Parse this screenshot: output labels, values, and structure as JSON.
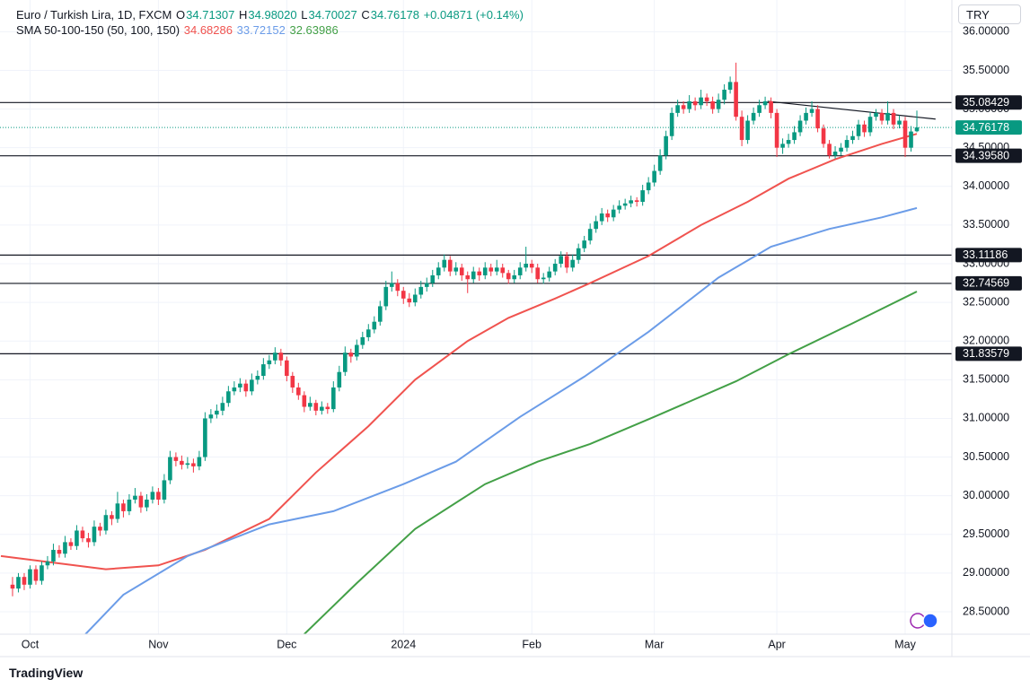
{
  "legend": {
    "symbol": "Euro / Turkish Lira, 1D, FXCM",
    "o_label": "O",
    "open": "34.71307",
    "h_label": "H",
    "high": "34.98020",
    "l_label": "L",
    "low": "34.70027",
    "c_label": "C",
    "close": "34.76178",
    "change": "+0.04871 (+0.14%)",
    "sma_title": "SMA 50-100-150 (50, 100, 150)",
    "sma_values": [
      "34.68286",
      "33.72152",
      "32.63986"
    ]
  },
  "currency": "TRY",
  "brand": "TradingView",
  "chart_data": {
    "type": "candlestick",
    "up_color": "#089981",
    "down_color": "#f23645",
    "grid": true,
    "xlim": [
      -2.15,
      161
    ],
    "ylim": [
      28.21,
      36.41
    ],
    "xticks": [
      {
        "value": 3,
        "label": "Oct"
      },
      {
        "value": 25,
        "label": "Nov"
      },
      {
        "value": 47,
        "label": "Dec"
      },
      {
        "value": 67,
        "label": "2024"
      },
      {
        "value": 89,
        "label": "Feb"
      },
      {
        "value": 110,
        "label": "Mar"
      },
      {
        "value": 131,
        "label": "Apr"
      },
      {
        "value": 153,
        "label": "May"
      }
    ],
    "yticks": [
      {
        "value": 36,
        "label": "36.00000"
      },
      {
        "value": 35.5,
        "label": "35.50000"
      },
      {
        "value": 35,
        "label": "35.00000"
      },
      {
        "value": 34.5,
        "label": "34.50000"
      },
      {
        "value": 34,
        "label": "34.00000"
      },
      {
        "value": 33.5,
        "label": "33.50000"
      },
      {
        "value": 33,
        "label": "33.00000"
      },
      {
        "value": 32.5,
        "label": "32.50000"
      },
      {
        "value": 32,
        "label": "32.00000"
      },
      {
        "value": 31.5,
        "label": "31.50000"
      },
      {
        "value": 31,
        "label": "31.00000"
      },
      {
        "value": 30.5,
        "label": "30.50000"
      },
      {
        "value": 30,
        "label": "30.00000"
      },
      {
        "value": 29.5,
        "label": "29.50000"
      },
      {
        "value": 29,
        "label": "29.00000"
      },
      {
        "value": 28.5,
        "label": "28.50000"
      }
    ],
    "candles": [
      [
        28.85,
        28.95,
        28.7,
        28.8
      ],
      [
        28.8,
        29.0,
        28.75,
        28.95
      ],
      [
        28.95,
        29.0,
        28.78,
        28.85
      ],
      [
        28.85,
        29.1,
        28.8,
        29.05
      ],
      [
        29.05,
        29.1,
        28.85,
        28.9
      ],
      [
        28.9,
        29.15,
        28.85,
        29.1
      ],
      [
        29.1,
        29.22,
        29.05,
        29.15
      ],
      [
        29.15,
        29.38,
        29.1,
        29.3
      ],
      [
        29.3,
        29.36,
        29.2,
        29.25
      ],
      [
        29.25,
        29.48,
        29.2,
        29.4
      ],
      [
        29.4,
        29.45,
        29.3,
        29.35
      ],
      [
        29.35,
        29.62,
        29.3,
        29.55
      ],
      [
        29.55,
        29.6,
        29.4,
        29.45
      ],
      [
        29.45,
        29.52,
        29.33,
        29.4
      ],
      [
        29.4,
        29.68,
        29.35,
        29.6
      ],
      [
        29.6,
        29.65,
        29.48,
        29.55
      ],
      [
        29.55,
        29.82,
        29.5,
        29.75
      ],
      [
        29.75,
        29.8,
        29.62,
        29.7
      ],
      [
        29.7,
        30.05,
        29.65,
        29.9
      ],
      [
        29.9,
        29.95,
        29.72,
        29.8
      ],
      [
        29.8,
        30.02,
        29.75,
        29.95
      ],
      [
        29.95,
        30.1,
        29.9,
        30.0
      ],
      [
        30.0,
        30.05,
        29.78,
        29.85
      ],
      [
        29.85,
        30.02,
        29.8,
        29.95
      ],
      [
        29.95,
        30.12,
        29.9,
        30.05
      ],
      [
        30.05,
        30.1,
        29.88,
        29.95
      ],
      [
        29.95,
        30.28,
        29.9,
        30.2
      ],
      [
        30.2,
        30.58,
        30.15,
        30.5
      ],
      [
        30.5,
        30.56,
        30.38,
        30.45
      ],
      [
        30.45,
        30.52,
        30.34,
        30.4
      ],
      [
        30.4,
        30.5,
        30.35,
        30.42
      ],
      [
        30.42,
        30.48,
        30.3,
        30.38
      ],
      [
        30.38,
        30.58,
        30.33,
        30.5
      ],
      [
        30.5,
        31.08,
        30.45,
        31.0
      ],
      [
        31.0,
        31.12,
        30.94,
        31.05
      ],
      [
        31.05,
        31.18,
        31.0,
        31.1
      ],
      [
        31.1,
        31.28,
        31.04,
        31.2
      ],
      [
        31.2,
        31.42,
        31.15,
        31.35
      ],
      [
        31.35,
        31.48,
        31.3,
        31.4
      ],
      [
        31.4,
        31.52,
        31.34,
        31.45
      ],
      [
        31.45,
        31.5,
        31.28,
        31.35
      ],
      [
        31.35,
        31.58,
        31.3,
        31.5
      ],
      [
        31.5,
        31.62,
        31.44,
        31.55
      ],
      [
        31.55,
        31.78,
        31.5,
        31.7
      ],
      [
        31.7,
        31.82,
        31.64,
        31.75
      ],
      [
        31.75,
        31.92,
        31.7,
        31.85
      ],
      [
        31.85,
        31.9,
        31.68,
        31.75
      ],
      [
        31.75,
        31.8,
        31.48,
        31.55
      ],
      [
        31.55,
        31.6,
        31.33,
        31.4
      ],
      [
        31.4,
        31.46,
        31.24,
        31.3
      ],
      [
        31.3,
        31.35,
        31.08,
        31.15
      ],
      [
        31.15,
        31.28,
        31.1,
        31.2
      ],
      [
        31.2,
        31.24,
        31.04,
        31.1
      ],
      [
        31.1,
        31.22,
        31.05,
        31.15
      ],
      [
        31.15,
        31.2,
        31.06,
        31.12
      ],
      [
        31.12,
        31.48,
        31.08,
        31.4
      ],
      [
        31.4,
        31.68,
        31.35,
        31.6
      ],
      [
        31.6,
        31.93,
        31.55,
        31.85
      ],
      [
        31.85,
        31.9,
        31.72,
        31.8
      ],
      [
        31.8,
        32.02,
        31.75,
        31.95
      ],
      [
        31.95,
        32.12,
        31.9,
        32.05
      ],
      [
        32.05,
        32.22,
        32.0,
        32.15
      ],
      [
        32.15,
        32.32,
        32.1,
        32.25
      ],
      [
        32.25,
        32.52,
        32.2,
        32.45
      ],
      [
        32.45,
        32.78,
        32.4,
        32.7
      ],
      [
        32.7,
        32.9,
        32.64,
        32.75
      ],
      [
        32.75,
        32.8,
        32.58,
        32.65
      ],
      [
        32.65,
        32.7,
        32.48,
        32.55
      ],
      [
        32.55,
        32.62,
        32.44,
        32.5
      ],
      [
        32.5,
        32.68,
        32.45,
        32.6
      ],
      [
        32.6,
        32.78,
        32.55,
        32.7
      ],
      [
        32.7,
        32.82,
        32.64,
        32.75
      ],
      [
        32.75,
        32.92,
        32.7,
        32.85
      ],
      [
        32.85,
        33.02,
        32.8,
        32.95
      ],
      [
        32.95,
        33.12,
        32.9,
        33.05
      ],
      [
        33.05,
        33.1,
        32.84,
        32.9
      ],
      [
        32.9,
        33.02,
        32.85,
        32.95
      ],
      [
        32.95,
        33.0,
        32.78,
        32.85
      ],
      [
        32.85,
        32.9,
        32.62,
        32.8
      ],
      [
        32.8,
        32.96,
        32.75,
        32.9
      ],
      [
        32.9,
        32.95,
        32.78,
        32.85
      ],
      [
        32.85,
        33.02,
        32.8,
        32.95
      ],
      [
        32.95,
        33.0,
        32.84,
        32.9
      ],
      [
        32.9,
        33.05,
        32.85,
        32.95
      ],
      [
        32.95,
        33.0,
        32.82,
        32.88
      ],
      [
        32.88,
        32.92,
        32.74,
        32.8
      ],
      [
        32.8,
        32.92,
        32.75,
        32.85
      ],
      [
        32.85,
        33.02,
        32.8,
        32.95
      ],
      [
        32.95,
        33.22,
        32.9,
        33.0
      ],
      [
        33.0,
        33.05,
        32.88,
        32.95
      ],
      [
        32.95,
        33.0,
        32.75,
        32.8
      ],
      [
        32.8,
        32.88,
        32.74,
        32.82
      ],
      [
        32.82,
        32.96,
        32.77,
        32.9
      ],
      [
        32.9,
        33.06,
        32.85,
        33.0
      ],
      [
        33.0,
        33.16,
        32.95,
        33.1
      ],
      [
        33.1,
        33.15,
        32.88,
        32.95
      ],
      [
        32.95,
        33.12,
        32.9,
        33.05
      ],
      [
        33.05,
        33.26,
        33.0,
        33.2
      ],
      [
        33.2,
        33.36,
        33.15,
        33.3
      ],
      [
        33.3,
        33.52,
        33.25,
        33.45
      ],
      [
        33.45,
        33.62,
        33.4,
        33.55
      ],
      [
        33.55,
        33.72,
        33.5,
        33.65
      ],
      [
        33.65,
        33.7,
        33.54,
        33.6
      ],
      [
        33.6,
        33.76,
        33.55,
        33.7
      ],
      [
        33.7,
        33.82,
        33.65,
        33.75
      ],
      [
        33.75,
        33.84,
        33.7,
        33.78
      ],
      [
        33.78,
        33.88,
        33.73,
        33.82
      ],
      [
        33.82,
        33.86,
        33.74,
        33.8
      ],
      [
        33.8,
        34.02,
        33.75,
        33.95
      ],
      [
        33.95,
        34.12,
        33.9,
        34.05
      ],
      [
        34.05,
        34.28,
        34.0,
        34.2
      ],
      [
        34.2,
        34.48,
        34.15,
        34.4
      ],
      [
        34.4,
        34.72,
        34.35,
        34.65
      ],
      [
        34.65,
        35.02,
        34.6,
        34.95
      ],
      [
        34.95,
        35.12,
        34.9,
        35.05
      ],
      [
        35.05,
        35.1,
        34.94,
        35.0
      ],
      [
        35.0,
        35.18,
        34.95,
        35.1
      ],
      [
        35.1,
        35.15,
        34.98,
        35.05
      ],
      [
        35.05,
        35.25,
        35.0,
        35.15
      ],
      [
        35.15,
        35.2,
        35.04,
        35.1
      ],
      [
        35.1,
        35.16,
        34.94,
        35.0
      ],
      [
        35.0,
        35.2,
        34.95,
        35.12
      ],
      [
        35.12,
        35.32,
        35.06,
        35.25
      ],
      [
        35.25,
        35.42,
        35.2,
        35.35
      ],
      [
        35.35,
        35.6,
        34.85,
        34.9
      ],
      [
        34.9,
        34.98,
        34.52,
        34.6
      ],
      [
        34.6,
        34.92,
        34.55,
        34.85
      ],
      [
        34.85,
        35.02,
        34.8,
        34.95
      ],
      [
        34.95,
        35.12,
        34.9,
        35.05
      ],
      [
        35.05,
        35.16,
        35.0,
        35.1
      ],
      [
        35.1,
        35.15,
        34.88,
        34.95
      ],
      [
        34.95,
        35.0,
        34.38,
        34.5
      ],
      [
        34.5,
        34.62,
        34.42,
        34.55
      ],
      [
        34.55,
        34.68,
        34.5,
        34.6
      ],
      [
        34.6,
        34.78,
        34.55,
        34.7
      ],
      [
        34.7,
        34.92,
        34.65,
        34.85
      ],
      [
        34.85,
        35.02,
        34.8,
        34.95
      ],
      [
        34.95,
        35.1,
        34.9,
        35.0
      ],
      [
        35.0,
        35.05,
        34.7,
        34.75
      ],
      [
        34.75,
        34.8,
        34.5,
        34.55
      ],
      [
        34.55,
        34.6,
        34.36,
        34.4
      ],
      [
        34.4,
        34.52,
        34.36,
        34.45
      ],
      [
        34.45,
        34.56,
        34.4,
        34.5
      ],
      [
        34.5,
        34.66,
        34.45,
        34.6
      ],
      [
        34.6,
        34.72,
        34.55,
        34.65
      ],
      [
        34.65,
        34.86,
        34.6,
        34.8
      ],
      [
        34.8,
        34.85,
        34.64,
        34.7
      ],
      [
        34.7,
        34.96,
        34.65,
        34.9
      ],
      [
        34.9,
        35.0,
        34.85,
        34.95
      ],
      [
        34.95,
        35.0,
        34.8,
        34.85
      ],
      [
        34.85,
        35.1,
        34.8,
        34.95
      ],
      [
        34.95,
        35.0,
        34.74,
        34.8
      ],
      [
        34.8,
        34.92,
        34.75,
        34.85
      ],
      [
        34.85,
        34.9,
        34.38,
        34.5
      ],
      [
        34.5,
        34.78,
        34.45,
        34.71
      ],
      [
        34.71307,
        34.9802,
        34.70027,
        34.76178
      ]
    ],
    "series": [
      {
        "name": "SMA 50",
        "color": "#f0534f",
        "x": [
          -2,
          16,
          25,
          33,
          44,
          52,
          61,
          69,
          78,
          85,
          93,
          99,
          109,
          118,
          126,
          133,
          141,
          149,
          155
        ],
        "values": [
          29.22,
          29.05,
          29.1,
          29.3,
          29.7,
          30.3,
          30.9,
          31.5,
          32.0,
          32.3,
          32.55,
          32.75,
          33.1,
          33.5,
          33.8,
          34.1,
          34.35,
          34.55,
          34.68
        ]
      },
      {
        "name": "SMA 100",
        "color": "#6b9ce8",
        "x": [
          12.5,
          19,
          30,
          44,
          55,
          67,
          76,
          87,
          98,
          109,
          121,
          130,
          140,
          149,
          155
        ],
        "values": [
          28.21,
          28.72,
          29.22,
          29.63,
          29.8,
          30.15,
          30.44,
          31.02,
          31.54,
          32.12,
          32.82,
          33.22,
          33.45,
          33.6,
          33.72
        ]
      },
      {
        "name": "SMA 150",
        "color": "#43a047",
        "x": [
          50,
          59,
          69,
          81,
          90,
          99,
          110,
          124,
          133,
          144,
          155
        ],
        "values": [
          28.21,
          28.87,
          29.57,
          30.15,
          30.44,
          30.67,
          31.02,
          31.48,
          31.83,
          32.23,
          32.64
        ]
      }
    ],
    "levels": [
      {
        "value": 35.08429,
        "label": "35.08429"
      },
      {
        "value": 34.3958,
        "label": "34.39580"
      },
      {
        "value": 33.11186,
        "label": "33.11186"
      },
      {
        "value": 32.74569,
        "label": "32.74569"
      },
      {
        "value": 31.83579,
        "label": "31.83579"
      }
    ],
    "last_price": {
      "value": 34.76178,
      "label": "34.76178",
      "color": "#089981"
    },
    "trendline": {
      "x": [
        129.4,
        158.2
      ],
      "values": [
        35.1,
        34.87
      ]
    }
  }
}
